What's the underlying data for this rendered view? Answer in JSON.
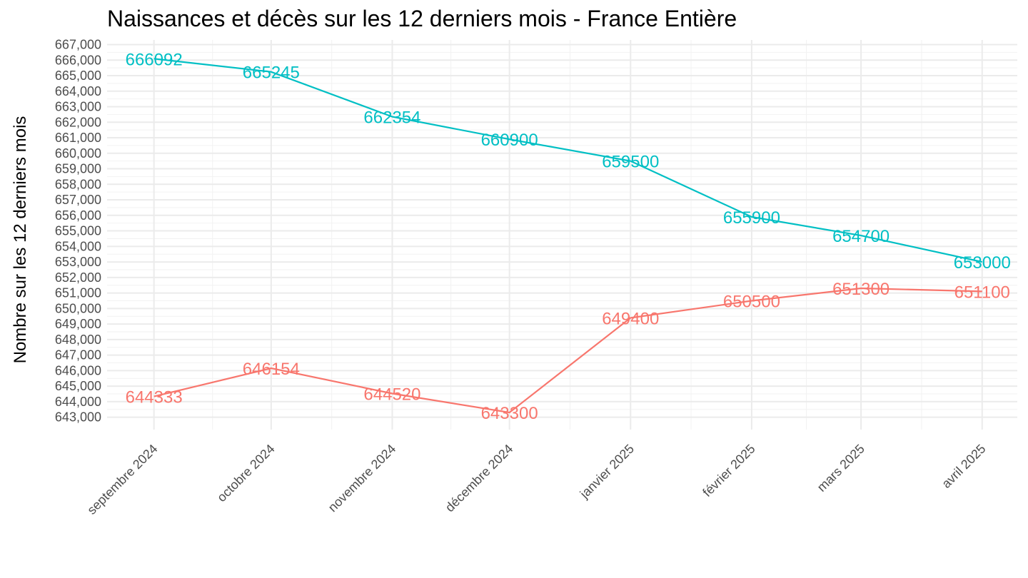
{
  "chart_data": {
    "type": "line",
    "title": "Naissances et décès sur les 12 derniers mois - France Entière",
    "xlabel": "",
    "ylabel": "Nombre sur les 12 derniers mois",
    "categories": [
      "septembre 2024",
      "octobre 2024",
      "novembre 2024",
      "décembre 2024",
      "janvier 2025",
      "février 2025",
      "mars 2025",
      "avril 2025"
    ],
    "x_dates": [
      "2024-09-01",
      "2024-10-01",
      "2024-11-01",
      "2024-12-01",
      "2025-01-01",
      "2025-02-01",
      "2025-03-01",
      "2025-04-01"
    ],
    "y_ticks": [
      "643,000",
      "644,000",
      "645,000",
      "646,000",
      "647,000",
      "648,000",
      "649,000",
      "650,000",
      "651,000",
      "652,000",
      "653,000",
      "654,000",
      "655,000",
      "656,000",
      "657,000",
      "658,000",
      "659,000",
      "660,000",
      "661,000",
      "662,000",
      "663,000",
      "664,000",
      "665,000",
      "666,000",
      "667,000"
    ],
    "ylim": [
      642200,
      667300
    ],
    "grid": true,
    "legend": "none",
    "series": [
      {
        "color": "#00BFC4",
        "values": [
          666092,
          665245,
          662354,
          660900,
          659500,
          655900,
          654700,
          653000
        ],
        "labels": [
          "666092",
          "665245",
          "662354",
          "660900",
          "659500",
          "655900",
          "654700",
          "653000"
        ]
      },
      {
        "color": "#F8766D",
        "values": [
          644333,
          646154,
          644520,
          643300,
          649400,
          650500,
          651300,
          651100
        ],
        "labels": [
          "644333",
          "646154",
          "644520",
          "643300",
          "649400",
          "650500",
          "651300",
          "651100"
        ]
      }
    ]
  }
}
